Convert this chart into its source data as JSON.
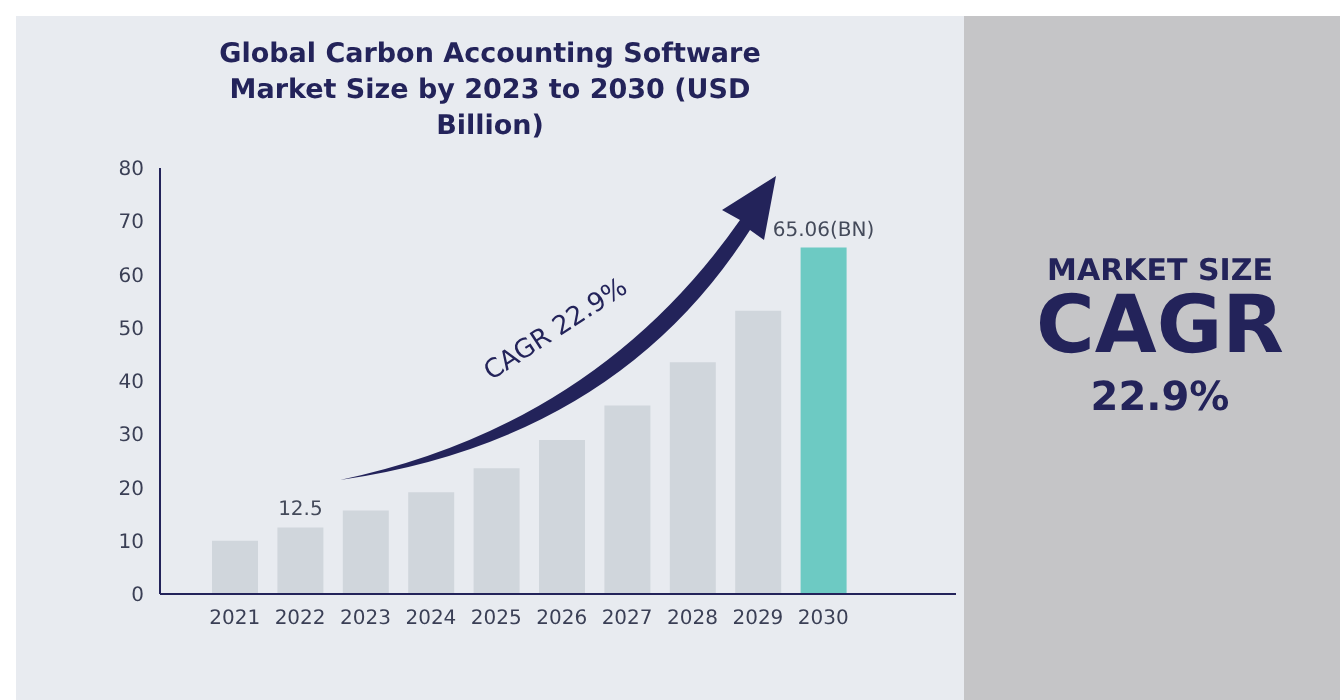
{
  "chart_data": {
    "type": "bar",
    "title": "Global Carbon Accounting Software Market Size by 2023 to 2030 (USD Billion)",
    "categories": [
      "2021",
      "2022",
      "2023",
      "2024",
      "2025",
      "2026",
      "2027",
      "2028",
      "2029",
      "2030"
    ],
    "values": [
      10,
      12.5,
      15.7,
      19.1,
      23.6,
      28.9,
      35.4,
      43.5,
      53.2,
      65.06
    ],
    "colors": [
      "#d0d6dc",
      "#d0d6dc",
      "#d0d6dc",
      "#d0d6dc",
      "#d0d6dc",
      "#d0d6dc",
      "#d0d6dc",
      "#d0d6dc",
      "#d0d6dc",
      "#6dcac3"
    ],
    "value_labels": [
      null,
      "12.5",
      null,
      null,
      null,
      null,
      null,
      null,
      null,
      "65.06(BN)"
    ],
    "ylim": [
      0,
      80
    ],
    "yticks": [
      0,
      10,
      20,
      30,
      40,
      50,
      60,
      70,
      80
    ],
    "grid": false,
    "legend": false,
    "annotations": [
      "CAGR 22.9%",
      "MARKET SIZE",
      "CAGR",
      "22.9%"
    ]
  }
}
